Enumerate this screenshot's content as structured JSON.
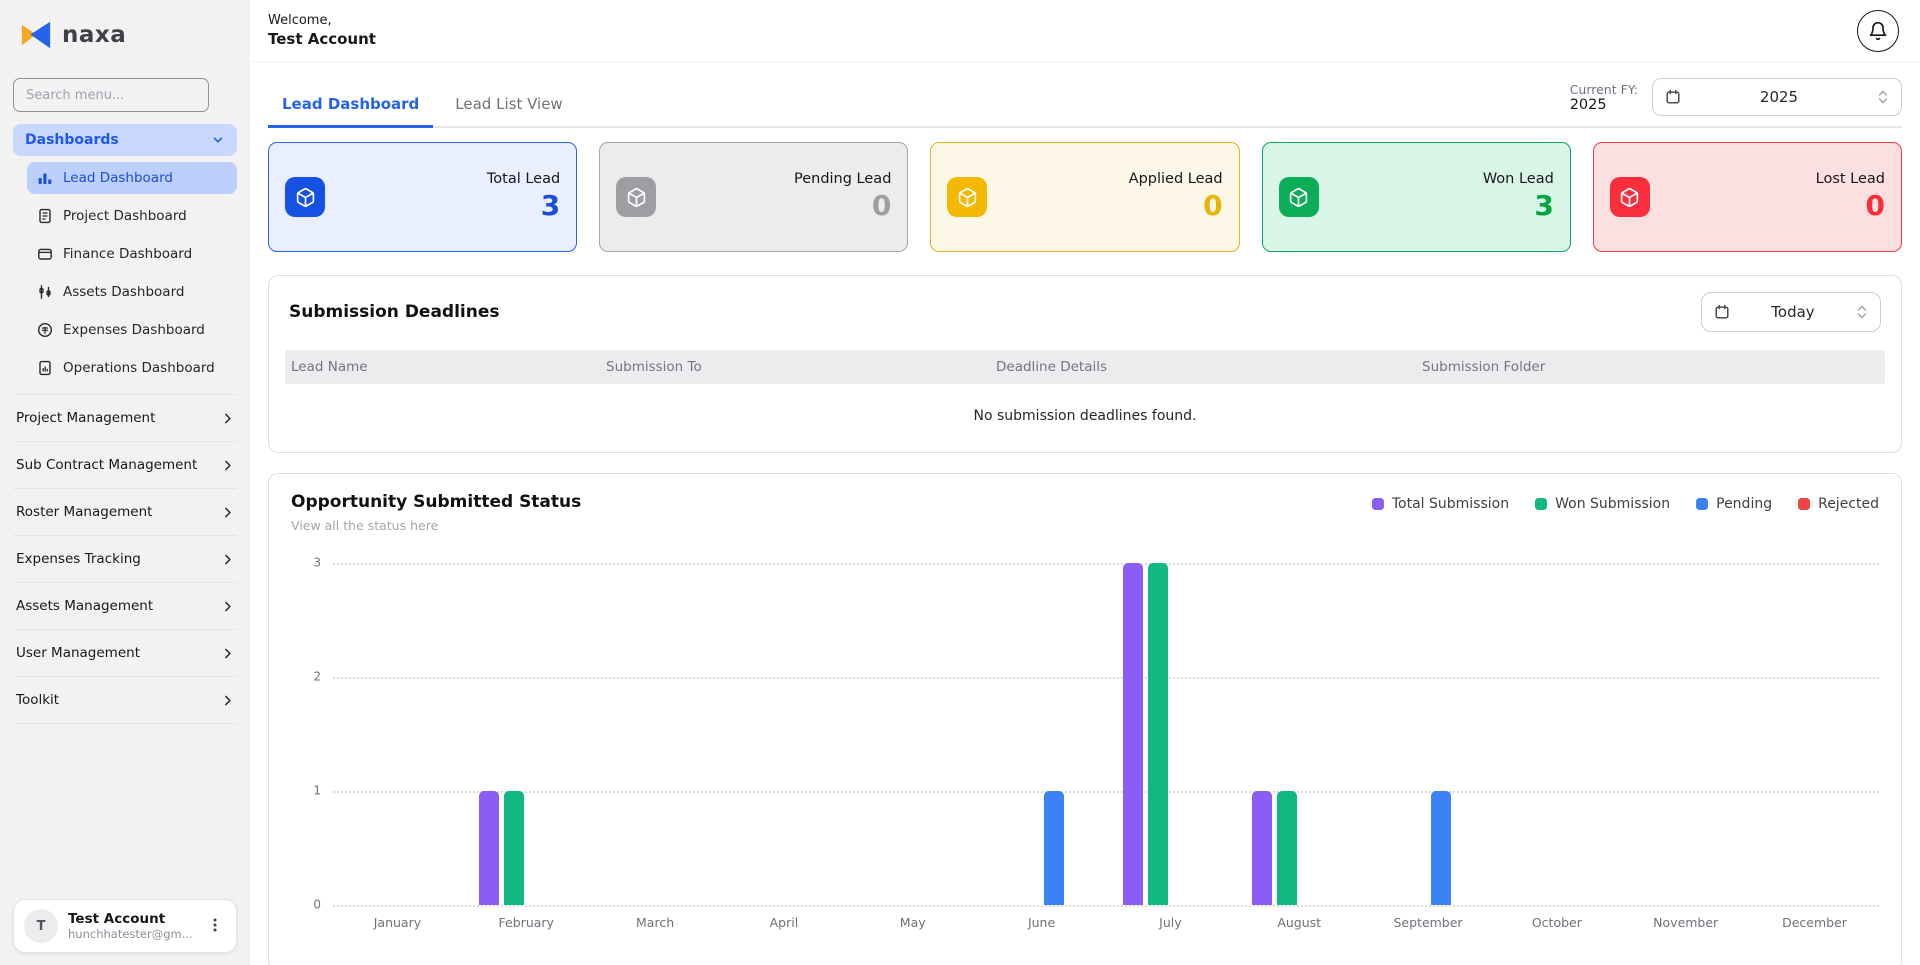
{
  "sidebar": {
    "logo_text": "naxa",
    "search_placeholder": "Search menu...",
    "dashboards_label": "Dashboards",
    "dashboard_items": [
      {
        "label": "Lead Dashboard",
        "active": true
      },
      {
        "label": "Project Dashboard"
      },
      {
        "label": "Finance Dashboard"
      },
      {
        "label": "Assets Dashboard"
      },
      {
        "label": "Expenses Dashboard"
      },
      {
        "label": "Operations Dashboard"
      }
    ],
    "sections": [
      {
        "label": "Project Management"
      },
      {
        "label": "Sub Contract Management"
      },
      {
        "label": "Roster Management"
      },
      {
        "label": "Expenses Tracking"
      },
      {
        "label": "Assets Management"
      },
      {
        "label": "User Management"
      },
      {
        "label": "Toolkit"
      }
    ],
    "user": {
      "initial": "T",
      "name": "Test Account",
      "email": "hunchhatester@gm..."
    }
  },
  "header": {
    "welcome": "Welcome,",
    "account_name": "Test Account"
  },
  "tabs": [
    {
      "label": "Lead Dashboard",
      "active": true
    },
    {
      "label": "Lead List View",
      "active": false
    }
  ],
  "fiscal_year": {
    "label": "Current FY:",
    "current": "2025",
    "select_value": "2025"
  },
  "stats": [
    {
      "label": "Total Lead",
      "value": "3",
      "accent": "#2563eb",
      "bg": "#e9effe",
      "icon_bg": "#1552e3",
      "value_color": "#1d4ed8"
    },
    {
      "label": "Pending Lead",
      "value": "0",
      "accent": "#a6a6ab",
      "bg": "#ececec",
      "icon_bg": "#9e9ea2",
      "value_color": "#9e9ea2"
    },
    {
      "label": "Applied Lead",
      "value": "0",
      "accent": "#ecb21c",
      "bg": "#fdf7e7",
      "icon_bg": "#f5b800",
      "value_color": "#eab308"
    },
    {
      "label": "Won Lead",
      "value": "3",
      "accent": "#0aa858",
      "bg": "#d8f5e7",
      "icon_bg": "#0bae57",
      "value_color": "#00a63e"
    },
    {
      "label": "Lost Lead",
      "value": "0",
      "accent": "#fa3b44",
      "bg": "#fbdfe1",
      "icon_bg": "#f92f3e",
      "value_color": "#fb2c36"
    }
  ],
  "deadlines": {
    "title": "Submission Deadlines",
    "filter_value": "Today",
    "columns": [
      "Lead Name",
      "Submission To",
      "Deadline Details",
      "Submission Folder"
    ],
    "rows": [],
    "empty_message": "No submission deadlines found."
  },
  "chart_section": {
    "title": "Opportunity Submitted Status",
    "subtitle": "View all the status here"
  },
  "chart_data": {
    "type": "bar",
    "title": "Opportunity Submitted Status",
    "categories": [
      "January",
      "February",
      "March",
      "April",
      "May",
      "June",
      "July",
      "August",
      "September",
      "October",
      "November",
      "December"
    ],
    "series": [
      {
        "name": "Total Submission",
        "color": "#8b5cf6",
        "values": [
          0,
          1,
          0,
          0,
          0,
          0,
          3,
          1,
          0,
          0,
          0,
          0
        ]
      },
      {
        "name": "Won Submission",
        "color": "#10b981",
        "values": [
          0,
          1,
          0,
          0,
          0,
          0,
          3,
          1,
          0,
          0,
          0,
          0
        ]
      },
      {
        "name": "Pending",
        "color": "#3b82f6",
        "values": [
          0,
          0,
          0,
          0,
          0,
          1,
          0,
          0,
          1,
          0,
          0,
          0
        ]
      },
      {
        "name": "Rejected",
        "color": "#ef4444",
        "values": [
          0,
          0,
          0,
          0,
          0,
          0,
          0,
          0,
          0,
          0,
          0,
          0
        ]
      }
    ],
    "xlabel": "",
    "ylabel": "",
    "ylim": [
      0,
      3
    ],
    "yticks": [
      0,
      1,
      2,
      3
    ],
    "grid": "horizontal-dotted",
    "legend_position": "top-right"
  },
  "icons": {
    "stat_cards": "package-cube-icon",
    "fy_select": "calendar-icon",
    "deadline_filter": "calendar-icon",
    "topbar_right": "bell-icon",
    "user_menu": "kebab-icon"
  }
}
